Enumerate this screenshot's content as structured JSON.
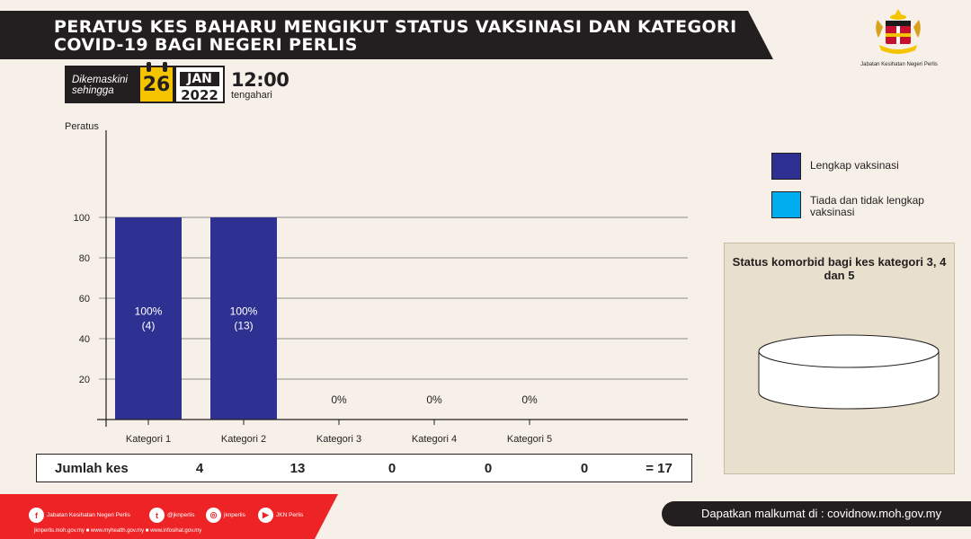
{
  "header": {
    "title": "PERATUS KES BAHARU MENGIKUT STATUS VAKSINASI  DAN KATEGORI COVID-19 BAGI NEGERI PERLIS"
  },
  "update": {
    "label": "Dikemaskini sehingga",
    "day": "26",
    "month": "JAN",
    "year": "2022",
    "time": "12:00",
    "time_note": "tengahari"
  },
  "logo": {
    "caption": "Jabatan Kesihatan Negeri Perlis"
  },
  "chart_data": {
    "type": "bar",
    "ylabel": "Peratus",
    "xlabel": "",
    "ylim": [
      0,
      120
    ],
    "yticks": [
      20,
      40,
      60,
      80,
      100
    ],
    "grid": true,
    "categories": [
      "Kategori 1",
      "Kategori 2",
      "Kategori 3",
      "Kategori 4",
      "Kategori 5"
    ],
    "series": [
      {
        "name": "Lengkap vaksinasi",
        "color": "#2e3192",
        "values": [
          100,
          100,
          0,
          0,
          0
        ]
      },
      {
        "name": "Tiada dan tidak lengkap vaksinasi",
        "color": "#00aeef",
        "values": [
          0,
          0,
          0,
          0,
          0
        ]
      }
    ],
    "bar_labels": [
      {
        "pct": "100%",
        "count": "(4)"
      },
      {
        "pct": "100%",
        "count": "(13)"
      },
      {
        "pct": "0%",
        "count": ""
      },
      {
        "pct": "0%",
        "count": ""
      },
      {
        "pct": "0%",
        "count": ""
      }
    ],
    "legend_position": "right"
  },
  "totals": {
    "label": "Jumlah kes",
    "values": [
      "4",
      "13",
      "0",
      "0",
      "0"
    ],
    "total": "= 17"
  },
  "comorbid": {
    "title": "Status komorbid bagi kes kategori 3, 4 dan 5"
  },
  "footer": {
    "social": [
      {
        "icon": "facebook-icon",
        "glyph": "f",
        "label": "Jabatan Kesihatan Negeri Perlis"
      },
      {
        "icon": "twitter-icon",
        "glyph": "t",
        "label": "@jknperlis"
      },
      {
        "icon": "instagram-icon",
        "glyph": "◎",
        "label": "jknperlis"
      },
      {
        "icon": "youtube-icon",
        "glyph": "▶",
        "label": "JKN Perlis"
      }
    ],
    "websites": "jknperlis.moh.gov.my ■ www.myhealth.gov.my ■ www.infosihat.gov.my",
    "info": "Dapatkan malkumat di : covidnow.moh.gov.my"
  },
  "colors": {
    "dark": "#231f20",
    "accent_red": "#ee2326",
    "calendar_yellow": "#f5c400",
    "background": "#f6f0e8",
    "panel": "#e9dfcd"
  }
}
